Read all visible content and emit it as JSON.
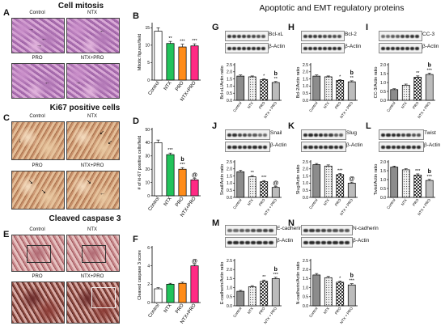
{
  "panels": {
    "A": {
      "letter": "A",
      "title": "Cell mitosis",
      "images": [
        "Control",
        "NTX",
        "PRO",
        "NTX+PRO"
      ]
    },
    "B": {
      "letter": "B",
      "ylabel": "Mitotic figures/field"
    },
    "C": {
      "letter": "C",
      "title": "Ki67 positive cells",
      "images": [
        "Control",
        "NTX",
        "PRO",
        "NTX+PRO"
      ]
    },
    "D": {
      "letter": "D",
      "ylabel": "# of ki-67 positive cells/field"
    },
    "E": {
      "letter": "E",
      "title": "Cleaved caspase 3",
      "images": [
        "Control",
        "NTX",
        "PRO",
        "NTX+PRO"
      ]
    },
    "F": {
      "letter": "F",
      "ylabel": "Cleaved caspase 3 score"
    },
    "right_title": "Apoptotic and EMT regulatory proteins",
    "actin": "β-Actin"
  },
  "chart_data": [
    {
      "id": "B",
      "type": "bar",
      "categories": [
        "Control",
        "NTX",
        "PRO",
        "NTX+PRO"
      ],
      "values": [
        14,
        10.5,
        9.5,
        9.8
      ],
      "errors": [
        1.0,
        0.6,
        0.8,
        0.6
      ],
      "sig": [
        "",
        "**",
        "***",
        "***"
      ],
      "ylim": [
        0,
        16
      ],
      "yticks": [
        0,
        5,
        10,
        15
      ],
      "colors": [
        "#ffffff",
        "#22c25a",
        "#ff8c1a",
        "#ff2a84"
      ],
      "ylabel": "Mitotic figures/field"
    },
    {
      "id": "D",
      "type": "bar",
      "categories": [
        "Control",
        "NTX",
        "PRO",
        "NTX+PRO"
      ],
      "values": [
        40,
        31,
        20,
        12
      ],
      "errors": [
        2.0,
        1.2,
        1.2,
        1.0
      ],
      "sig": [
        "",
        "***",
        "b\n***",
        "@"
      ],
      "ylim": [
        0,
        50
      ],
      "yticks": [
        0,
        10,
        20,
        30,
        40,
        50
      ],
      "colors": [
        "#ffffff",
        "#22c25a",
        "#ff8c1a",
        "#ff2a84"
      ],
      "ylabel": "# of ki-67 positive cells/field"
    },
    {
      "id": "F",
      "type": "bar",
      "categories": [
        "Control",
        "NTX",
        "PRO",
        "NTX+PRO"
      ],
      "values": [
        1.5,
        2.0,
        2.1,
        4.0
      ],
      "errors": [
        0.12,
        0.1,
        0.12,
        0.15
      ],
      "sig": [
        "",
        "",
        "",
        "@"
      ],
      "ylim": [
        0,
        6
      ],
      "yticks": [
        0,
        2,
        4,
        6
      ],
      "colors": [
        "#ffffff",
        "#22c25a",
        "#ff8c1a",
        "#ff2a84"
      ],
      "ylabel": "Cleaved caspase 3 score"
    },
    {
      "id": "G",
      "type": "bar",
      "protein": "Bcl-xL",
      "categories": [
        "Control",
        "NTX",
        "PRO",
        "NTX + PRO"
      ],
      "values": [
        1.7,
        1.65,
        1.45,
        1.25
      ],
      "errors": [
        0.08,
        0.06,
        0.06,
        0.07
      ],
      "sig": [
        "",
        "",
        "*",
        "b\n**"
      ],
      "ylim": [
        0,
        2.5
      ],
      "yticks": [
        0.0,
        0.5,
        1.0,
        1.5,
        2.0,
        2.5
      ],
      "ylabel": "Bcl-xL/Actin ratio"
    },
    {
      "id": "H",
      "type": "bar",
      "protein": "Bcl-2",
      "categories": [
        "Control",
        "NTX",
        "PRO",
        "NTX + PRO"
      ],
      "values": [
        1.7,
        1.65,
        1.4,
        1.3
      ],
      "errors": [
        0.08,
        0.06,
        0.06,
        0.07
      ],
      "sig": [
        "",
        "",
        "*",
        "b\n**"
      ],
      "ylim": [
        0,
        2.5
      ],
      "yticks": [
        0.0,
        0.5,
        1.0,
        1.5,
        2.0,
        2.5
      ],
      "ylabel": "Bcl-2/Actin ratio"
    },
    {
      "id": "I",
      "type": "bar",
      "protein": "CC-3",
      "categories": [
        "Control",
        "NTX",
        "PRO",
        "NTX + PRO"
      ],
      "values": [
        0.6,
        0.85,
        1.3,
        1.45
      ],
      "errors": [
        0.05,
        0.06,
        0.07,
        0.08
      ],
      "sig": [
        "",
        "",
        "**",
        "b\n***"
      ],
      "ylim": [
        0,
        2.0
      ],
      "yticks": [
        0.0,
        0.5,
        1.0,
        1.5,
        2.0
      ],
      "ylabel": "CC-3/Actin ratio"
    },
    {
      "id": "J",
      "type": "bar",
      "protein": "Snail",
      "categories": [
        "Control",
        "NTX",
        "PRO",
        "NTX + PRO"
      ],
      "values": [
        1.8,
        1.45,
        1.1,
        0.7
      ],
      "errors": [
        0.1,
        0.08,
        0.08,
        0.06
      ],
      "sig": [
        "",
        "**",
        "***",
        "@"
      ],
      "ylim": [
        0,
        2.5
      ],
      "yticks": [
        0.0,
        0.5,
        1.0,
        1.5,
        2.0,
        2.5
      ],
      "ylabel": "Snail/Actin ratio"
    },
    {
      "id": "K",
      "type": "bar",
      "protein": "Slug",
      "categories": [
        "Control",
        "NTX",
        "PRO",
        "NTX + PRO"
      ],
      "values": [
        2.3,
        2.2,
        1.6,
        1.0
      ],
      "errors": [
        0.08,
        0.08,
        0.08,
        0.07
      ],
      "sig": [
        "",
        "",
        "***",
        "@"
      ],
      "ylim": [
        0,
        2.5
      ],
      "yticks": [
        0.0,
        0.5,
        1.0,
        1.5,
        2.0,
        2.5
      ],
      "ylabel": "Slug/Actin ratio"
    },
    {
      "id": "L",
      "type": "bar",
      "protein": "Twist",
      "categories": [
        "Control",
        "NTX",
        "PRO",
        "NTX + PRO"
      ],
      "values": [
        1.7,
        1.55,
        1.25,
        0.95
      ],
      "errors": [
        0.06,
        0.06,
        0.07,
        0.06
      ],
      "sig": [
        "",
        "",
        "***",
        "b\n***"
      ],
      "ylim": [
        0,
        2.0
      ],
      "yticks": [
        0.0,
        0.5,
        1.0,
        1.5,
        2.0
      ],
      "ylabel": "Twist/Actin ratio"
    },
    {
      "id": "M",
      "type": "bar",
      "protein": "E-cadherin",
      "categories": [
        "Control",
        "NTX",
        "PRO",
        "NTX + PRO"
      ],
      "values": [
        0.8,
        1.05,
        1.35,
        1.5
      ],
      "errors": [
        0.05,
        0.06,
        0.07,
        0.07
      ],
      "sig": [
        "",
        "",
        "**",
        "b\n***"
      ],
      "ylim": [
        0,
        2.5
      ],
      "yticks": [
        0.0,
        0.5,
        1.0,
        1.5,
        2.0,
        2.5
      ],
      "ylabel": "E-cadherin/Actin ratio"
    },
    {
      "id": "N",
      "type": "bar",
      "protein": "N-cadherin",
      "categories": [
        "Control",
        "NTX",
        "PRO",
        "NTX + PRO"
      ],
      "values": [
        1.7,
        1.55,
        1.3,
        1.15
      ],
      "errors": [
        0.08,
        0.07,
        0.07,
        0.07
      ],
      "sig": [
        "",
        "",
        "*",
        "b\n***"
      ],
      "ylim": [
        0,
        2.5
      ],
      "yticks": [
        0.0,
        0.5,
        1.0,
        1.5,
        2.0,
        2.5
      ],
      "ylabel": "N-cadherin/Actin ratio"
    }
  ]
}
